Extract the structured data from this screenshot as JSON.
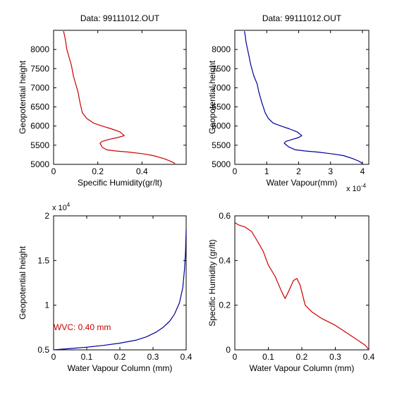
{
  "chart_data": [
    {
      "type": "line",
      "title": "Data: 99111012.OUT",
      "xlabel": "Specific Humidity(gr/lt)",
      "ylabel": "Geopotential height",
      "xlim": [
        0,
        0.6
      ],
      "ylim": [
        5000,
        8500
      ],
      "xticks": [
        0,
        0.2,
        0.4
      ],
      "xtick_labels": [
        "0",
        "0.2",
        "0.4"
      ],
      "yticks": [
        5000,
        5500,
        6000,
        6500,
        7000,
        7500,
        8000
      ],
      "ytick_labels": [
        "5000",
        "5500",
        "6000",
        "6500",
        "7000",
        "7500",
        "8000"
      ],
      "exponent": "",
      "color": "#cc0000",
      "series": [
        {
          "x": [
            0.55,
            0.53,
            0.5,
            0.45,
            0.4,
            0.34,
            0.28,
            0.24,
            0.22,
            0.21,
            0.22,
            0.25,
            0.29,
            0.32,
            0.3,
            0.26,
            0.22,
            0.18,
            0.15,
            0.13,
            0.12,
            0.11,
            0.1,
            0.09,
            0.08,
            0.07,
            0.06,
            0.055,
            0.05,
            0.045
          ],
          "y": [
            5020,
            5080,
            5150,
            5230,
            5280,
            5320,
            5350,
            5380,
            5450,
            5550,
            5600,
            5650,
            5700,
            5750,
            5850,
            5930,
            6000,
            6080,
            6200,
            6350,
            6600,
            6900,
            7100,
            7300,
            7600,
            7800,
            8000,
            8200,
            8350,
            8480
          ]
        }
      ]
    },
    {
      "type": "line",
      "title": "Data: 99111012.OUT",
      "xlabel": "Water Vapour(mm)",
      "ylabel": "Geopotential height",
      "xlim": [
        0,
        4.2
      ],
      "ylim": [
        5000,
        8500
      ],
      "xticks": [
        0,
        1,
        2,
        3,
        4
      ],
      "xtick_labels": [
        "0",
        "1",
        "2",
        "3",
        "4"
      ],
      "yticks": [
        5000,
        5500,
        6000,
        6500,
        7000,
        7500,
        8000
      ],
      "ytick_labels": [
        "5000",
        "5500",
        "6000",
        "6500",
        "7000",
        "7500",
        "8000"
      ],
      "exponent": "x 10-4",
      "color": "#000099",
      "series": [
        {
          "x": [
            4.0,
            3.9,
            3.7,
            3.4,
            3.0,
            2.6,
            2.2,
            1.9,
            1.7,
            1.55,
            1.6,
            1.8,
            2.0,
            2.1,
            1.95,
            1.7,
            1.45,
            1.2,
            1.05,
            0.95,
            0.85,
            0.75,
            0.7,
            0.6,
            0.5,
            0.45,
            0.4,
            0.35,
            0.33,
            0.3
          ],
          "y": [
            5020,
            5080,
            5150,
            5230,
            5280,
            5320,
            5350,
            5380,
            5450,
            5550,
            5600,
            5650,
            5700,
            5750,
            5850,
            5930,
            6000,
            6080,
            6200,
            6350,
            6600,
            6900,
            7100,
            7300,
            7600,
            7800,
            8000,
            8200,
            8350,
            8480
          ]
        }
      ]
    },
    {
      "type": "line",
      "title": "",
      "xlabel": "Water Vapour Column (mm)",
      "ylabel": "Geopotential height",
      "xlim": [
        0,
        0.4
      ],
      "ylim": [
        0.5,
        2
      ],
      "xticks": [
        0,
        0.1,
        0.2,
        0.3,
        0.4
      ],
      "xtick_labels": [
        "0",
        "0.1",
        "0.2",
        "0.3",
        "0.4"
      ],
      "yticks": [
        0.5,
        1,
        1.5,
        2
      ],
      "ytick_labels": [
        "0.5",
        "1",
        "1.5",
        "2"
      ],
      "exponent": "x 104",
      "color": "#000099",
      "annotation": "WVC: 0.40 mm",
      "annotation_color": "#cc0000",
      "annotation_x": 0.0,
      "annotation_y": 0.72,
      "series": [
        {
          "x": [
            0.0,
            0.05,
            0.1,
            0.15,
            0.2,
            0.25,
            0.28,
            0.31,
            0.33,
            0.35,
            0.365,
            0.38,
            0.39,
            0.395,
            0.398,
            0.4
          ],
          "y": [
            0.5,
            0.515,
            0.53,
            0.55,
            0.575,
            0.61,
            0.645,
            0.7,
            0.75,
            0.82,
            0.9,
            1.03,
            1.2,
            1.4,
            1.6,
            1.85
          ]
        }
      ]
    },
    {
      "type": "line",
      "title": "",
      "xlabel": "Water Vapour Column (mm)",
      "ylabel": "Specific Humidity (gr/lt)",
      "xlim": [
        0,
        0.4
      ],
      "ylim": [
        0,
        0.6
      ],
      "xticks": [
        0,
        0.1,
        0.2,
        0.3,
        0.4
      ],
      "xtick_labels": [
        "0",
        "0.1",
        "0.2",
        "0.3",
        "0.4"
      ],
      "yticks": [
        0,
        0.2,
        0.4,
        0.6
      ],
      "ytick_labels": [
        "0",
        "0.2",
        "0.4",
        "0.6"
      ],
      "exponent": "",
      "color": "#cc0000",
      "series": [
        {
          "x": [
            0.0,
            0.01,
            0.03,
            0.05,
            0.07,
            0.085,
            0.1,
            0.12,
            0.14,
            0.15,
            0.16,
            0.175,
            0.185,
            0.195,
            0.21,
            0.23,
            0.26,
            0.3,
            0.34,
            0.37,
            0.39,
            0.4
          ],
          "y": [
            0.57,
            0.56,
            0.55,
            0.53,
            0.48,
            0.44,
            0.38,
            0.33,
            0.26,
            0.23,
            0.26,
            0.31,
            0.32,
            0.29,
            0.2,
            0.17,
            0.14,
            0.11,
            0.07,
            0.04,
            0.02,
            0.0
          ]
        }
      ]
    }
  ]
}
